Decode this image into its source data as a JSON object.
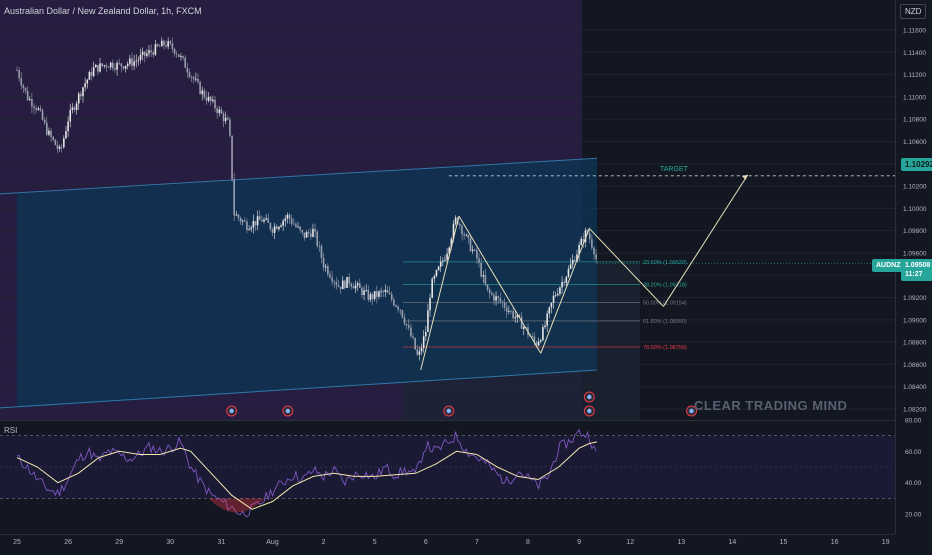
{
  "header": {
    "title": "Australian Dollar / New Zealand Dollar, 1h, FXCM",
    "currency": "NZD"
  },
  "watermark": "CLEAR TRADING MIND",
  "price_pill": {
    "symbol": "AUDNZD",
    "price": "1.09508",
    "time": "11:27"
  },
  "target": {
    "label": "TARGET",
    "price": "1.10292"
  },
  "rsi_label": "RSI",
  "colors": {
    "background": "#131722",
    "bull_candle": "#e6e6e6",
    "zone_purple": "#2a1f45",
    "channel_fill": "#0d3656",
    "channel_line": "#2f77a7",
    "fib_green": "#26a69a",
    "fib_red": "#f23645",
    "rsi_line": "#7e57c2",
    "rsi_ma": "#f3e7b0",
    "target": "#26a69a",
    "price_pill": "#26a69a"
  },
  "chart_data": [
    {
      "type": "candlestick",
      "title": "Australian Dollar / New Zealand Dollar, 1h, FXCM",
      "y_axis": {
        "ylim": [
          1.0812,
          1.1178
        ],
        "ticks": [
          1.116,
          1.114,
          1.112,
          1.11,
          1.108,
          1.106,
          1.104,
          1.102,
          1.1,
          1.098,
          1.096,
          1.094,
          1.092,
          1.09,
          1.088,
          1.086,
          1.084,
          1.082
        ],
        "tick_labels": [
          "1.11600",
          "1.11400",
          "1.11200",
          "1.11000",
          "1.10800",
          "1.10600",
          "1.10400",
          "1.10200",
          "1.10000",
          "1.09800",
          "1.09600",
          "1.09400",
          "1.09200",
          "1.09000",
          "1.08800",
          "1.08600",
          "1.08400",
          "1.08200"
        ]
      },
      "x_axis": {
        "ticks": [
          {
            "label": "25",
            "t": 0
          },
          {
            "label": "26",
            "t": 1
          },
          {
            "label": "29",
            "t": 2
          },
          {
            "label": "30",
            "t": 3
          },
          {
            "label": "31",
            "t": 4
          },
          {
            "label": "Aug",
            "t": 5
          },
          {
            "label": "2",
            "t": 6
          },
          {
            "label": "5",
            "t": 7
          },
          {
            "label": "6",
            "t": 8
          },
          {
            "label": "7",
            "t": 9
          },
          {
            "label": "8",
            "t": 10
          },
          {
            "label": "9",
            "t": 11
          },
          {
            "label": "12",
            "t": 12
          },
          {
            "label": "13",
            "t": 13
          },
          {
            "label": "14",
            "t": 14
          },
          {
            "label": "15",
            "t": 15
          },
          {
            "label": "16",
            "t": 16
          },
          {
            "label": "19",
            "t": 17
          }
        ]
      },
      "price_path": [
        [
          0,
          1.1124
        ],
        [
          0.2,
          1.11
        ],
        [
          0.4,
          1.109
        ],
        [
          0.6,
          1.1068
        ],
        [
          0.85,
          1.105
        ],
        [
          1.0,
          1.108
        ],
        [
          1.3,
          1.111
        ],
        [
          1.5,
          1.1125
        ],
        [
          1.8,
          1.113
        ],
        [
          2.0,
          1.1128
        ],
        [
          2.3,
          1.1132
        ],
        [
          2.6,
          1.114
        ],
        [
          2.9,
          1.1148
        ],
        [
          3.1,
          1.1142
        ],
        [
          3.3,
          1.1128
        ],
        [
          3.6,
          1.1105
        ],
        [
          3.9,
          1.109
        ],
        [
          4.15,
          1.1075
        ],
        [
          4.25,
          1.0995
        ],
        [
          4.5,
          1.0985
        ],
        [
          4.8,
          1.099
        ],
        [
          5.0,
          1.0982
        ],
        [
          5.3,
          1.0993
        ],
        [
          5.6,
          1.0975
        ],
        [
          5.8,
          1.098
        ],
        [
          6.0,
          1.095
        ],
        [
          6.3,
          1.093
        ],
        [
          6.5,
          1.0935
        ],
        [
          6.9,
          1.092
        ],
        [
          7.2,
          1.0925
        ],
        [
          7.5,
          1.091
        ],
        [
          7.75,
          1.088
        ],
        [
          7.85,
          1.0865
        ],
        [
          8.0,
          1.089
        ],
        [
          8.1,
          1.093
        ],
        [
          8.4,
          1.096
        ],
        [
          8.6,
          1.0992
        ],
        [
          8.8,
          1.0972
        ],
        [
          9.0,
          1.0955
        ],
        [
          9.2,
          1.0925
        ],
        [
          9.5,
          1.0915
        ],
        [
          9.7,
          1.0905
        ],
        [
          9.9,
          1.0895
        ],
        [
          10.15,
          1.0878
        ],
        [
          10.3,
          1.089
        ],
        [
          10.5,
          1.092
        ],
        [
          10.8,
          1.0945
        ],
        [
          11.0,
          1.0965
        ],
        [
          11.15,
          1.098
        ],
        [
          11.3,
          1.0962
        ],
        [
          11.35,
          1.09508
        ]
      ],
      "fibonacci": [
        {
          "ratio": "23.60%",
          "price": "1.09520",
          "value": 1.0952,
          "color": "#26a69a"
        },
        {
          "ratio": "38.20%",
          "price": "1.09318",
          "value": 1.09318,
          "color": "#26a69a"
        },
        {
          "ratio": "50.00%",
          "price": "1.09154",
          "value": 1.09154,
          "color": "#787b86"
        },
        {
          "ratio": "61.80%",
          "price": "1.08990",
          "value": 1.0899,
          "color": "#787b86"
        },
        {
          "ratio": "78.60%",
          "price": "1.08756",
          "value": 1.08756,
          "color": "#f23645"
        }
      ],
      "channel": {
        "upper": [
          [
            0,
            1.1013
          ],
          [
            11.35,
            1.1045
          ]
        ],
        "lower": [
          [
            0,
            1.0821
          ],
          [
            11.35,
            1.0855
          ]
        ]
      },
      "pattern_lines": [
        [
          [
            7.9,
            1.0855
          ],
          [
            8.65,
            1.0993
          ]
        ],
        [
          [
            8.65,
            1.0993
          ],
          [
            10.25,
            1.087
          ]
        ],
        [
          [
            10.25,
            1.087
          ],
          [
            11.2,
            1.0982
          ]
        ],
        [
          [
            11.2,
            1.0982
          ],
          [
            12.65,
            1.0912
          ]
        ],
        [
          [
            12.65,
            1.0912
          ],
          [
            14.3,
            1.103
          ]
        ]
      ],
      "target_line": {
        "from_t": 8.45,
        "value": 1.10292
      },
      "current_price": 1.09508,
      "event_markers": [
        {
          "t": 4.2,
          "row": "low"
        },
        {
          "t": 5.3,
          "row": "low"
        },
        {
          "t": 8.45,
          "row": "low"
        },
        {
          "t": 11.2,
          "row": "low"
        },
        {
          "t": 11.2,
          "row": "high"
        },
        {
          "t": 13.2,
          "row": "low"
        }
      ]
    },
    {
      "type": "line",
      "title": "RSI",
      "ylim": [
        10,
        80
      ],
      "ticks": [
        80,
        60,
        40,
        20
      ],
      "tick_labels": [
        "80.00",
        "60.00",
        "40.00",
        "20.00"
      ],
      "bands": [
        70,
        30
      ],
      "midline": 50,
      "series": [
        {
          "values": [
            [
              0,
              56
            ],
            [
              0.2,
              50
            ],
            [
              0.4,
              42
            ],
            [
              0.6,
              36
            ],
            [
              0.8,
              33
            ],
            [
              1.0,
              42
            ],
            [
              1.2,
              55
            ],
            [
              1.4,
              60
            ],
            [
              1.6,
              54
            ],
            [
              1.8,
              60
            ],
            [
              2.0,
              58
            ],
            [
              2.2,
              55
            ],
            [
              2.4,
              58
            ],
            [
              2.6,
              63
            ],
            [
              2.8,
              60
            ],
            [
              3.0,
              62
            ],
            [
              3.2,
              66
            ],
            [
              3.4,
              50
            ],
            [
              3.6,
              40
            ],
            [
              3.8,
              32
            ],
            [
              4.0,
              28
            ],
            [
              4.2,
              24
            ],
            [
              4.4,
              20
            ],
            [
              4.6,
              23
            ],
            [
              4.8,
              28
            ],
            [
              5.0,
              35
            ],
            [
              5.2,
              40
            ],
            [
              5.4,
              45
            ],
            [
              5.6,
              42
            ],
            [
              5.8,
              48
            ],
            [
              6.0,
              44
            ],
            [
              6.2,
              48
            ],
            [
              6.4,
              40
            ],
            [
              6.6,
              45
            ],
            [
              6.8,
              46
            ],
            [
              7.0,
              43
            ],
            [
              7.2,
              50
            ],
            [
              7.4,
              45
            ],
            [
              7.6,
              48
            ],
            [
              7.8,
              45
            ],
            [
              8.0,
              64
            ],
            [
              8.2,
              60
            ],
            [
              8.4,
              65
            ],
            [
              8.6,
              70
            ],
            [
              8.8,
              60
            ],
            [
              9.0,
              56
            ],
            [
              9.2,
              52
            ],
            [
              9.4,
              45
            ],
            [
              9.6,
              40
            ],
            [
              9.8,
              48
            ],
            [
              10.0,
              43
            ],
            [
              10.2,
              38
            ],
            [
              10.4,
              44
            ],
            [
              10.6,
              62
            ],
            [
              10.8,
              66
            ],
            [
              11.0,
              72
            ],
            [
              11.2,
              70
            ],
            [
              11.35,
              56
            ]
          ]
        },
        {
          "values": [
            [
              0,
              56
            ],
            [
              0.4,
              50
            ],
            [
              0.8,
              40
            ],
            [
              1.2,
              46
            ],
            [
              1.6,
              56
            ],
            [
              2.0,
              60
            ],
            [
              2.4,
              58
            ],
            [
              2.8,
              58
            ],
            [
              3.2,
              62
            ],
            [
              3.4,
              60
            ],
            [
              3.8,
              46
            ],
            [
              4.2,
              32
            ],
            [
              4.6,
              23
            ],
            [
              5.0,
              28
            ],
            [
              5.4,
              38
            ],
            [
              5.8,
              44
            ],
            [
              6.2,
              46
            ],
            [
              6.6,
              44
            ],
            [
              7.0,
              44
            ],
            [
              7.4,
              45
            ],
            [
              7.8,
              46
            ],
            [
              8.2,
              52
            ],
            [
              8.6,
              60
            ],
            [
              9.0,
              58
            ],
            [
              9.4,
              50
            ],
            [
              9.8,
              44
            ],
            [
              10.2,
              42
            ],
            [
              10.6,
              50
            ],
            [
              11.0,
              62
            ],
            [
              11.2,
              65
            ],
            [
              11.35,
              66
            ]
          ]
        }
      ]
    }
  ]
}
